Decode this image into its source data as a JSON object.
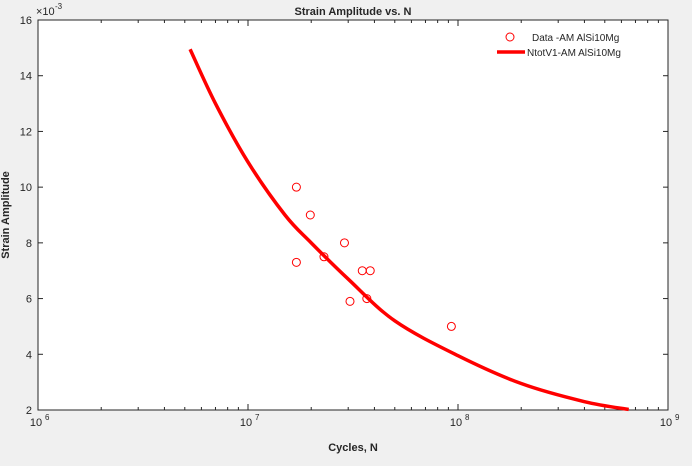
{
  "chart_data": {
    "type": "scatter",
    "title": "Strain Amplitude vs. N",
    "xlabel": "Cycles, N",
    "ylabel": "Strain Amplitude",
    "xscale": "log",
    "xlim": [
      1000000,
      1000000000
    ],
    "ylim": [
      2,
      16
    ],
    "y_multiplier_label": "×10^-3",
    "y_multiplier_base": "×10",
    "y_multiplier_exp": "-3",
    "xticks": [
      {
        "value": 1000000,
        "base": "10",
        "exp": "6"
      },
      {
        "value": 10000000,
        "base": "10",
        "exp": "7"
      },
      {
        "value": 100000000,
        "base": "10",
        "exp": "8"
      },
      {
        "value": 1000000000,
        "base": "10",
        "exp": "9"
      }
    ],
    "yticks": [
      {
        "value": 2,
        "label": "2"
      },
      {
        "value": 4,
        "label": "4"
      },
      {
        "value": 6,
        "label": "6"
      },
      {
        "value": 8,
        "label": "8"
      },
      {
        "value": 10,
        "label": "10"
      },
      {
        "value": 12,
        "label": "12"
      },
      {
        "value": 14,
        "label": "14"
      },
      {
        "value": 16,
        "label": "16"
      }
    ],
    "grid": false,
    "legend_position": "top-right",
    "series": [
      {
        "name": "Data -AM AlSi10Mg",
        "kind": "markers",
        "marker": "circle",
        "color": "#ff0000",
        "points": [
          {
            "x": 17000000,
            "y": 10.0
          },
          {
            "x": 17000000,
            "y": 7.3
          },
          {
            "x": 19800000,
            "y": 9.0
          },
          {
            "x": 23000000,
            "y": 7.5
          },
          {
            "x": 28800000,
            "y": 8.0
          },
          {
            "x": 30600000,
            "y": 5.9
          },
          {
            "x": 35000000,
            "y": 7.0
          },
          {
            "x": 36800000,
            "y": 6.0
          },
          {
            "x": 38200000,
            "y": 7.0
          },
          {
            "x": 93000000,
            "y": 5.0
          }
        ]
      },
      {
        "name": "NtotV1-AM AlSi10Mg",
        "kind": "line",
        "color": "#ff0000",
        "points": [
          {
            "x": 5300000,
            "y": 14.95
          },
          {
            "x": 7000000,
            "y": 13.0
          },
          {
            "x": 10000000,
            "y": 10.9
          },
          {
            "x": 15000000,
            "y": 9.0
          },
          {
            "x": 20000000,
            "y": 8.0
          },
          {
            "x": 30000000,
            "y": 6.7
          },
          {
            "x": 50000000,
            "y": 5.2
          },
          {
            "x": 100000000,
            "y": 3.95
          },
          {
            "x": 200000000,
            "y": 2.95
          },
          {
            "x": 400000000,
            "y": 2.3
          },
          {
            "x": 650000000,
            "y": 2.02
          }
        ]
      }
    ]
  }
}
